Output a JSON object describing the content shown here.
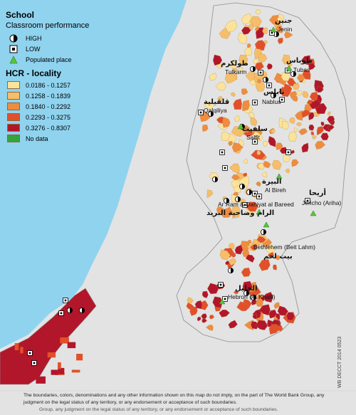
{
  "legend": {
    "school_title": "School",
    "performance_title": "Classroom performance",
    "high_label": "HIGH",
    "low_label": "LOW",
    "populated_label": "Populated place",
    "hcr_title": "HCR - locality",
    "classes": [
      {
        "label": "0.0186 - 0.1257",
        "color": "#fbe39a"
      },
      {
        "label": "0.1258 - 0.1839",
        "color": "#f6be68"
      },
      {
        "label": "0.1840 - 0.2292",
        "color": "#ef8c3f"
      },
      {
        "label": "0.2293 - 0.3275",
        "color": "#e2502a"
      },
      {
        "label": "0.3276 - 0.8307",
        "color": "#b2162a"
      },
      {
        "label": "No data",
        "color": "#35a43a"
      }
    ]
  },
  "colors": {
    "sea": "#8fd3ef",
    "land": "#e3e3e3",
    "border": "#8e8e8e"
  },
  "places": {
    "jenin_en": "Jenin",
    "jenin_ar": "جنين",
    "tulkarm_en": "Tulkarm",
    "tulkarm_ar": "طولكرم",
    "tubas_en": "Tubas",
    "tubas_ar": "طوباس",
    "nablus_en": "Nablus",
    "nablus_ar": "نابلس",
    "qalqiliya_en": "Qalqiliya",
    "qalqiliya_ar": "قلقيلية",
    "salfit_en": "Salfit",
    "salfit_ar": "سلفيت",
    "albireh_en": "Al Bireh",
    "albireh_ar": "البيرة",
    "aram_en": "Ar Ram & Dahiyat al Bareed",
    "aram_ar": "الرام وضاحية البريد",
    "jericho_en": "Jericho (Ariha)",
    "jericho_ar": "أريحا",
    "bethlehem_en": "Bethlehem (Beit Lahm)",
    "bethlehem_ar": "بيت لحم",
    "hebron_en": "Hebron (Al Khalil)",
    "hebron_ar": "الخليل"
  },
  "footer": {
    "disclaimer": "The boundaries, colors, denominations and any other information shown on this map do not imply, on the part of The World Bank Group, any judgment on the legal status of any territory, or any endorsement or acceptance of such boundaries.",
    "duplicate_line": "Group, any judgment on the legal status of any territory, or any endorsement or acceptance of such boundaries."
  },
  "stamp": "WB DECCT 2014 0523"
}
